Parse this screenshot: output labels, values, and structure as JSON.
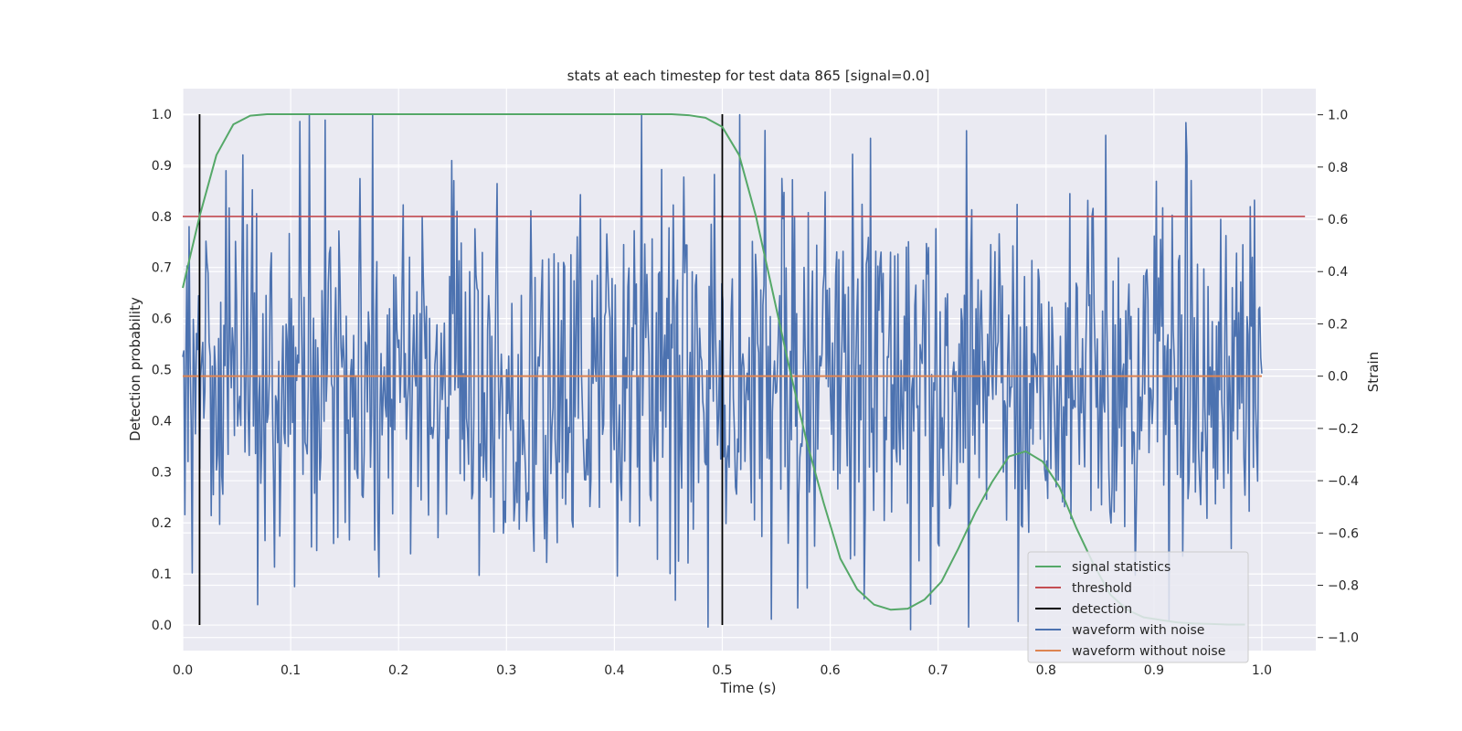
{
  "chart_data": {
    "type": "line",
    "title": "stats at each timestep for test data 865 [signal=0.0]",
    "xlabel": "Time (s)",
    "ylabel": "Detection probability",
    "y2label": "Strain",
    "xlim": [
      0.0,
      1.05
    ],
    "ylim": [
      -0.05,
      1.05
    ],
    "y2lim": [
      -1.05,
      1.1
    ],
    "xticks": [
      "0.0",
      "0.1",
      "0.2",
      "0.3",
      "0.4",
      "0.5",
      "0.6",
      "0.7",
      "0.8",
      "0.9",
      "1.0"
    ],
    "yticks": [
      "0.0",
      "0.1",
      "0.2",
      "0.3",
      "0.4",
      "0.5",
      "0.6",
      "0.7",
      "0.8",
      "0.9",
      "1.0"
    ],
    "y2ticks": [
      "−1.0",
      "−0.8",
      "−0.6",
      "−0.4",
      "−0.2",
      "0.0",
      "0.2",
      "0.4",
      "0.6",
      "0.8",
      "1.0"
    ],
    "grid": true,
    "legend_position": "lower-right",
    "colors": {
      "background": "#eaeaf2",
      "grid": "#ffffff",
      "signal_statistics": "#55a868",
      "threshold": "#c44e52",
      "detection": "#000000",
      "waveform_with_noise": "#4c72b0",
      "waveform_without_noise": "#dd8452"
    },
    "series": [
      {
        "name": "signal statistics",
        "axis": "left",
        "x": [
          0.0,
          0.0156,
          0.0312,
          0.0469,
          0.0625,
          0.0781,
          0.0938,
          0.1094,
          0.125,
          0.1406,
          0.1562,
          0.1719,
          0.1875,
          0.2031,
          0.2188,
          0.2344,
          0.25,
          0.2656,
          0.2812,
          0.2969,
          0.3125,
          0.3281,
          0.3438,
          0.3594,
          0.375,
          0.3906,
          0.4062,
          0.4219,
          0.4375,
          0.4531,
          0.4688,
          0.4844,
          0.5,
          0.5156,
          0.5312,
          0.5469,
          0.5625,
          0.5781,
          0.5938,
          0.6094,
          0.625,
          0.6406,
          0.6562,
          0.6719,
          0.6875,
          0.7031,
          0.7188,
          0.7344,
          0.75,
          0.7656,
          0.7812,
          0.7969,
          0.8125,
          0.8281,
          0.8438,
          0.8594,
          0.875,
          0.8906,
          0.9062,
          0.9219,
          0.9375,
          0.9531,
          0.9688,
          0.9844
        ],
        "y": [
          0.66,
          0.8,
          0.92,
          0.98,
          0.997,
          1.0,
          1.0,
          1.0,
          1.0,
          1.0,
          1.0,
          1.0,
          1.0,
          1.0,
          1.0,
          1.0,
          1.0,
          1.0,
          1.0,
          1.0,
          1.0,
          1.0,
          1.0,
          1.0,
          1.0,
          1.0,
          1.0,
          1.0,
          1.0,
          1.0,
          0.998,
          0.993,
          0.975,
          0.92,
          0.8,
          0.65,
          0.5,
          0.36,
          0.24,
          0.13,
          0.07,
          0.04,
          0.03,
          0.032,
          0.05,
          0.085,
          0.15,
          0.22,
          0.28,
          0.33,
          0.34,
          0.32,
          0.27,
          0.19,
          0.12,
          0.06,
          0.03,
          0.015,
          0.01,
          0.005,
          0.003,
          0.002,
          0.001,
          0.001
        ]
      },
      {
        "name": "threshold",
        "axis": "left",
        "x": [
          0.0,
          1.04
        ],
        "y": [
          0.8,
          0.8
        ]
      },
      {
        "name": "detection",
        "axis": "left",
        "type": "vlines",
        "x": [
          0.0156,
          0.5
        ],
        "y": [
          0.0,
          1.0
        ]
      },
      {
        "name": "waveform with noise",
        "axis": "right",
        "type": "noise",
        "samples": 1024,
        "x_range": [
          0.0,
          1.0
        ],
        "y_range": [
          -0.96,
          1.0
        ],
        "peaks": [
          {
            "x": 0.117,
            "y": 1.0
          },
          {
            "x": 0.54,
            "y": 0.94
          },
          {
            "x": 0.637,
            "y": 0.91
          },
          {
            "x": 0.93,
            "y": 0.97
          },
          {
            "x": 0.545,
            "y": -0.93
          },
          {
            "x": 0.674,
            "y": -0.97
          },
          {
            "x": 0.002,
            "y": -0.53
          },
          {
            "x": 1.0,
            "y": 0.01
          }
        ]
      },
      {
        "name": "waveform without noise",
        "axis": "right",
        "x": [
          0.0,
          1.0
        ],
        "y": [
          0.0,
          0.0
        ]
      }
    ]
  }
}
